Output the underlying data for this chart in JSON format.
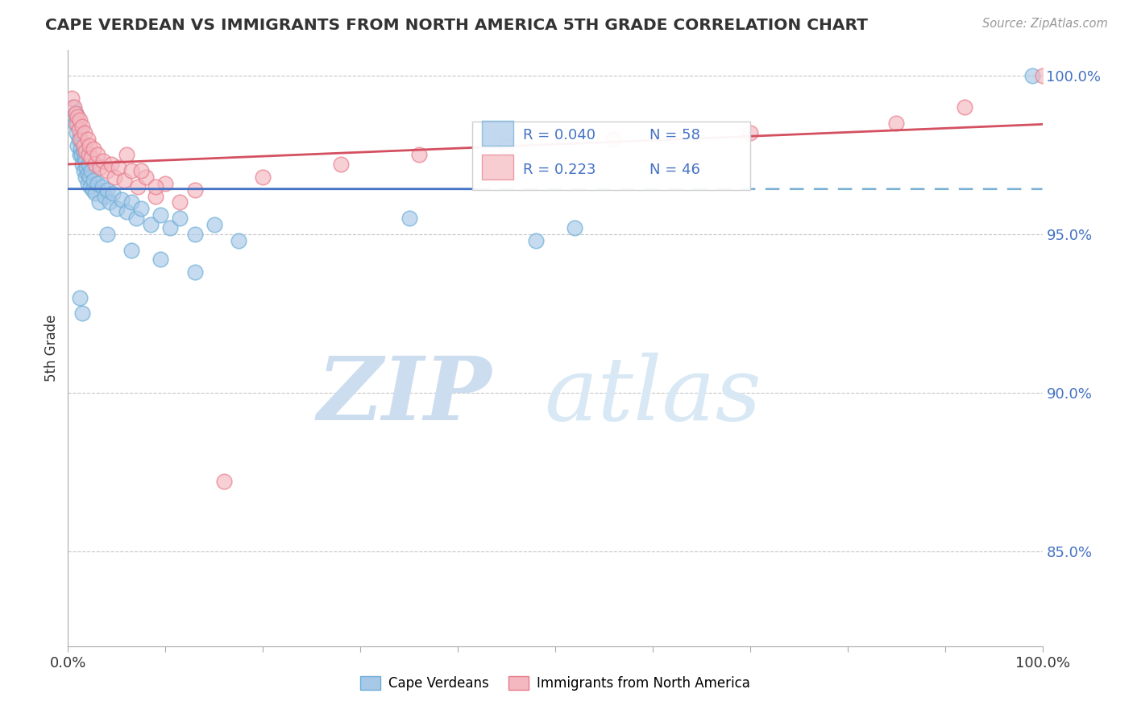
{
  "title": "CAPE VERDEAN VS IMMIGRANTS FROM NORTH AMERICA 5TH GRADE CORRELATION CHART",
  "source": "Source: ZipAtlas.com",
  "ylabel": "5th Grade",
  "xlim": [
    0.0,
    1.0
  ],
  "ylim": [
    0.82,
    1.008
  ],
  "y_ticks": [
    0.85,
    0.9,
    0.95,
    1.0
  ],
  "legend_R_blue": "0.040",
  "legend_N_blue": "58",
  "legend_R_pink": "0.223",
  "legend_N_pink": "46",
  "blue_color": "#a8c8e8",
  "blue_edge": "#6baed6",
  "pink_color": "#f4b8c0",
  "pink_edge": "#e87a8a",
  "trend_blue_solid": "#4472c4",
  "trend_blue_dash": "#7aafd4",
  "trend_pink_color": "#d45060",
  "background_color": "#ffffff",
  "grid_color": "#c8c8c8",
  "ytick_color": "#4472c4",
  "watermark_zip_color": "#ccddf0",
  "watermark_atlas_color": "#d8e8f4"
}
